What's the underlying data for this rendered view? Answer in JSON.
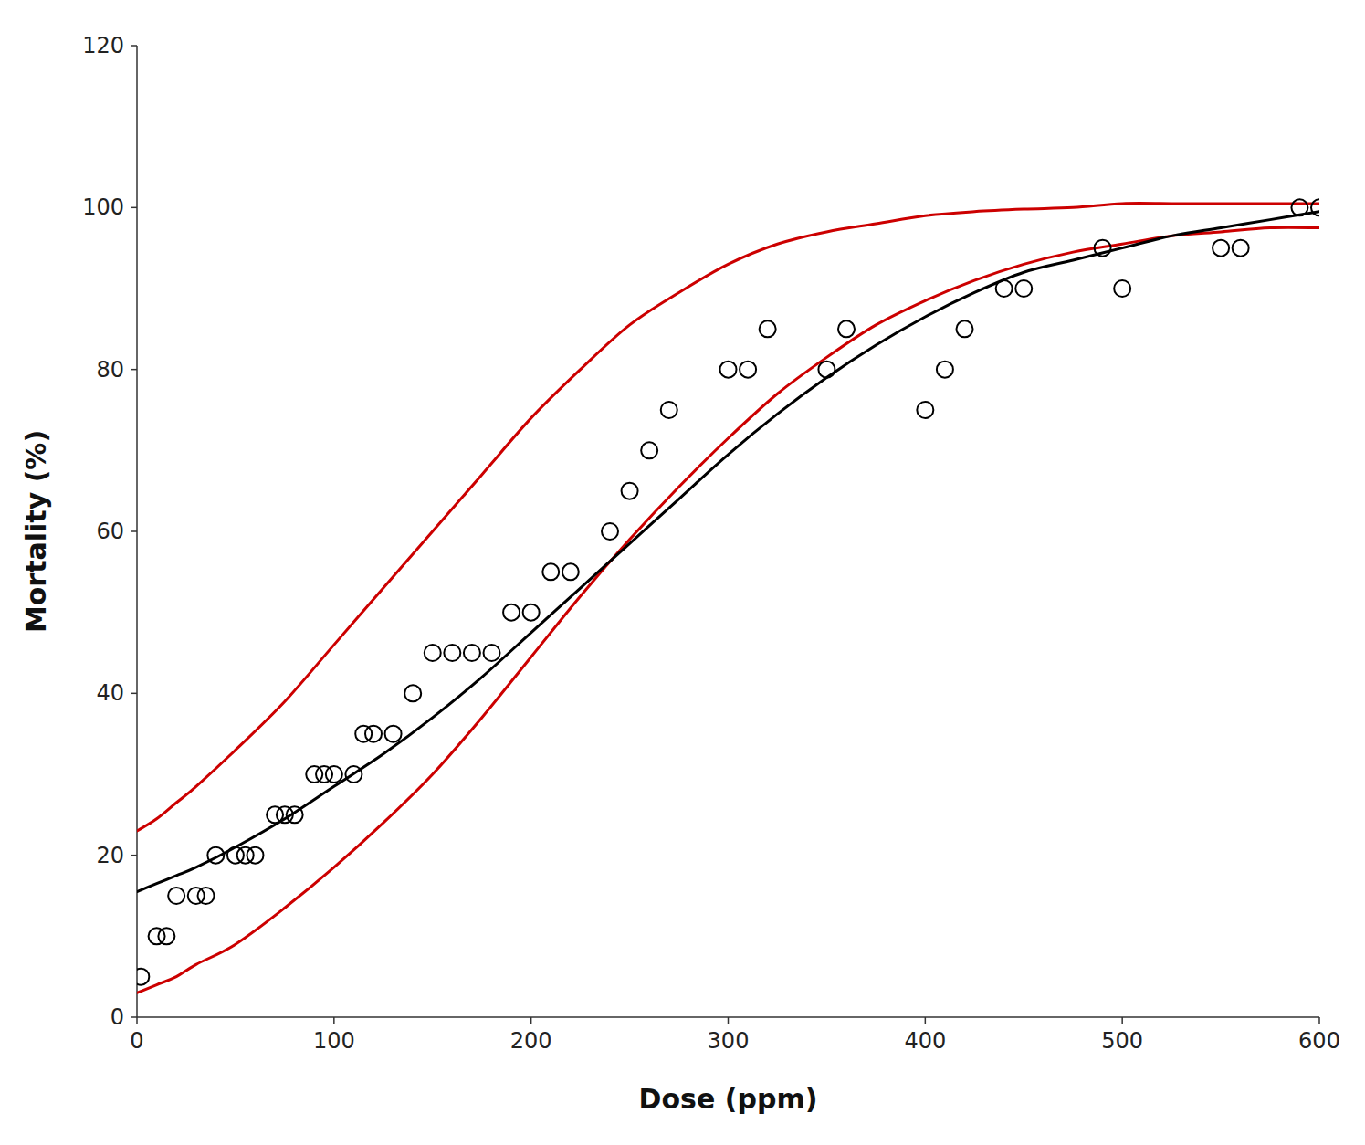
{
  "chart_data": {
    "type": "scatter",
    "xlabel": "Dose (ppm)",
    "ylabel": "Mortality (%)",
    "xlim": [
      0,
      600
    ],
    "ylim": [
      0,
      120
    ],
    "xticks": [
      0,
      100,
      200,
      300,
      400,
      500,
      600
    ],
    "yticks": [
      0,
      20,
      40,
      60,
      80,
      100,
      120
    ],
    "grid": false,
    "series": [
      {
        "type": "line",
        "color": "#cc0000",
        "x": [
          0,
          10,
          20,
          30,
          50,
          75,
          100,
          125,
          150,
          175,
          200,
          225,
          250,
          275,
          300,
          325,
          350,
          375,
          400,
          425,
          450,
          475,
          500,
          525,
          550,
          575,
          600
        ],
        "values": [
          23.0,
          24.5,
          26.5,
          28.5,
          33.0,
          39.0,
          46.0,
          53.0,
          60.0,
          67.0,
          74.0,
          80.0,
          85.5,
          89.5,
          93.0,
          95.5,
          97.0,
          98.0,
          99.0,
          99.5,
          99.8,
          100.0,
          100.5,
          100.5,
          100.5,
          100.5,
          100.5
        ]
      },
      {
        "type": "line",
        "color": "#cc0000",
        "x": [
          0,
          10,
          20,
          30,
          50,
          75,
          100,
          125,
          150,
          175,
          200,
          225,
          250,
          275,
          300,
          325,
          350,
          375,
          400,
          425,
          450,
          475,
          500,
          525,
          550,
          575,
          600
        ],
        "values": [
          3.0,
          4.0,
          5.0,
          6.5,
          9.0,
          13.5,
          18.5,
          24.0,
          30.0,
          37.0,
          44.5,
          52.0,
          59.0,
          65.5,
          71.5,
          77.0,
          81.5,
          85.5,
          88.5,
          91.0,
          93.0,
          94.5,
          95.5,
          96.5,
          97.0,
          97.5,
          97.5
        ]
      },
      {
        "type": "line",
        "color": "#000000",
        "x": [
          0,
          10,
          20,
          30,
          50,
          75,
          100,
          125,
          150,
          175,
          200,
          225,
          250,
          275,
          300,
          325,
          350,
          375,
          400,
          425,
          450,
          475,
          500,
          525,
          550,
          575,
          600
        ],
        "values": [
          15.5,
          16.5,
          17.5,
          18.5,
          21.0,
          24.5,
          28.5,
          32.5,
          37.0,
          42.0,
          47.5,
          53.0,
          58.5,
          64.0,
          69.5,
          74.5,
          79.0,
          83.0,
          86.5,
          89.5,
          92.0,
          93.5,
          95.0,
          96.5,
          97.5,
          98.5,
          99.5
        ]
      },
      {
        "type": "scatter",
        "color": "#000000",
        "marker": "circle-open",
        "x": [
          2,
          10,
          15,
          20,
          30,
          35,
          40,
          50,
          55,
          60,
          70,
          75,
          80,
          90,
          95,
          100,
          110,
          115,
          120,
          130,
          140,
          150,
          160,
          170,
          180,
          190,
          200,
          210,
          220,
          240,
          250,
          260,
          270,
          300,
          310,
          320,
          350,
          360,
          400,
          410,
          420,
          440,
          450,
          490,
          500,
          550,
          560,
          590,
          600
        ],
        "values": [
          5,
          10,
          10,
          15,
          15,
          15,
          20,
          20,
          20,
          20,
          25,
          25,
          25,
          30,
          30,
          30,
          30,
          35,
          35,
          35,
          40,
          45,
          45,
          45,
          45,
          50,
          50,
          55,
          55,
          60,
          65,
          70,
          75,
          80,
          80,
          85,
          80,
          85,
          75,
          80,
          85,
          90,
          90,
          95,
          90,
          95,
          95,
          100,
          100
        ]
      }
    ]
  }
}
